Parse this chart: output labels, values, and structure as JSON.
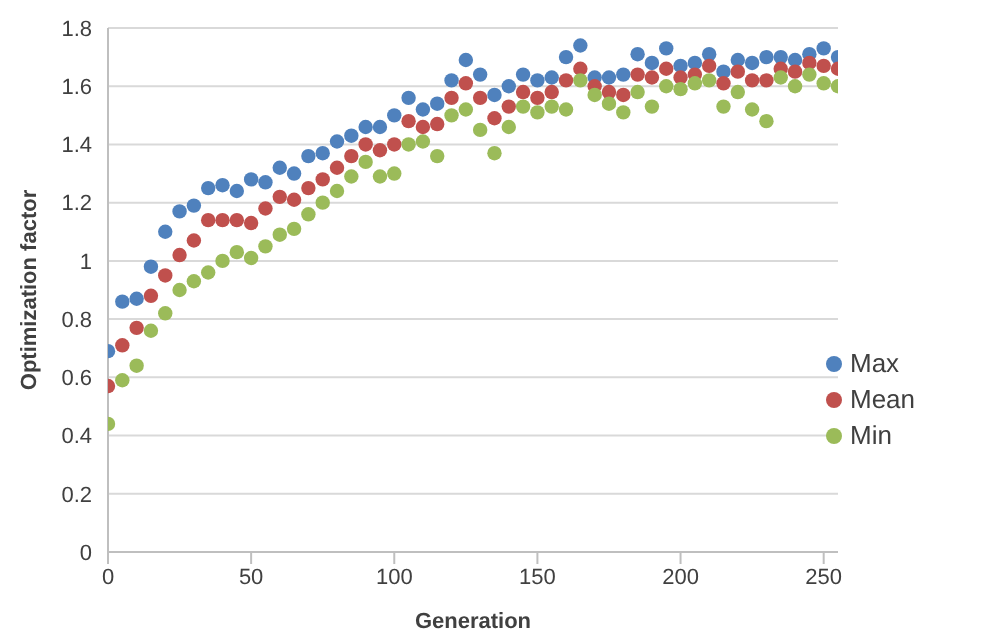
{
  "chart_data": {
    "type": "scatter",
    "xlabel": "Generation",
    "ylabel": "Optimization factor",
    "x": [
      0,
      5,
      10,
      15,
      20,
      25,
      30,
      35,
      40,
      45,
      50,
      55,
      60,
      65,
      70,
      75,
      80,
      85,
      90,
      95,
      100,
      105,
      110,
      115,
      120,
      125,
      130,
      135,
      140,
      145,
      150,
      155,
      160,
      165,
      170,
      175,
      180,
      185,
      190,
      195,
      200,
      205,
      210,
      215,
      220,
      225,
      230,
      235,
      240,
      245,
      250,
      255
    ],
    "series": [
      {
        "name": "Max",
        "color": "#4f81bd",
        "values": [
          0.69,
          0.86,
          0.87,
          0.98,
          1.1,
          1.17,
          1.19,
          1.25,
          1.26,
          1.24,
          1.28,
          1.27,
          1.32,
          1.3,
          1.36,
          1.37,
          1.41,
          1.43,
          1.46,
          1.46,
          1.5,
          1.56,
          1.52,
          1.54,
          1.62,
          1.69,
          1.64,
          1.57,
          1.6,
          1.64,
          1.62,
          1.63,
          1.7,
          1.74,
          1.63,
          1.63,
          1.64,
          1.71,
          1.68,
          1.73,
          1.67,
          1.68,
          1.71,
          1.65,
          1.69,
          1.68,
          1.7,
          1.7,
          1.69,
          1.71,
          1.73,
          1.7
        ]
      },
      {
        "name": "Mean",
        "color": "#c0504d",
        "values": [
          0.57,
          0.71,
          0.77,
          0.88,
          0.95,
          1.02,
          1.07,
          1.14,
          1.14,
          1.14,
          1.13,
          1.18,
          1.22,
          1.21,
          1.25,
          1.28,
          1.32,
          1.36,
          1.4,
          1.38,
          1.4,
          1.48,
          1.46,
          1.47,
          1.56,
          1.61,
          1.56,
          1.49,
          1.53,
          1.58,
          1.56,
          1.58,
          1.62,
          1.66,
          1.6,
          1.58,
          1.57,
          1.64,
          1.63,
          1.66,
          1.63,
          1.64,
          1.67,
          1.61,
          1.65,
          1.62,
          1.62,
          1.66,
          1.65,
          1.68,
          1.67,
          1.66
        ]
      },
      {
        "name": "Min",
        "color": "#9bbb59",
        "values": [
          0.44,
          0.59,
          0.64,
          0.76,
          0.82,
          0.9,
          0.93,
          0.96,
          1.0,
          1.03,
          1.01,
          1.05,
          1.09,
          1.11,
          1.16,
          1.2,
          1.24,
          1.29,
          1.34,
          1.29,
          1.3,
          1.4,
          1.41,
          1.36,
          1.5,
          1.52,
          1.45,
          1.37,
          1.46,
          1.53,
          1.51,
          1.53,
          1.52,
          1.62,
          1.57,
          1.54,
          1.51,
          1.58,
          1.53,
          1.6,
          1.59,
          1.61,
          1.62,
          1.53,
          1.58,
          1.52,
          1.48,
          1.63,
          1.6,
          1.64,
          1.61,
          1.6
        ]
      }
    ],
    "xlim": [
      0,
      255
    ],
    "xticks": [
      0,
      50,
      100,
      150,
      200,
      250
    ],
    "ylim": [
      0,
      1.8
    ],
    "yticks": [
      0,
      0.2,
      0.4,
      0.6,
      0.8,
      1,
      1.2,
      1.4,
      1.6,
      1.8
    ],
    "grid": "y",
    "legend": "right",
    "marker": "circle"
  }
}
